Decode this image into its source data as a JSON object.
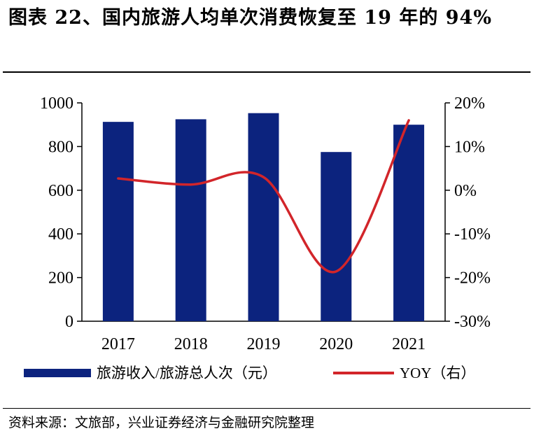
{
  "title": "图表 22、国内旅游人均单次消费恢复至 19 年的 94%",
  "source": "资料来源：文旅部，兴业证券经济与金融研究院整理",
  "colors": {
    "bar": "#0c237e",
    "line": "#d2252a",
    "axis": "#000000"
  },
  "chart_data": {
    "type": "bar+line",
    "categories": [
      "2017",
      "2018",
      "2019",
      "2020",
      "2021"
    ],
    "series": [
      {
        "name": "旅游收入/旅游总人次（元）",
        "type": "bar",
        "axis": "left",
        "values": [
          913,
          925,
          953,
          775,
          900
        ]
      },
      {
        "name": "YOY（右）",
        "type": "line",
        "axis": "right",
        "unit": "%",
        "values": [
          2.7,
          1.3,
          3.0,
          -18.6,
          16.0
        ]
      }
    ],
    "y_left": {
      "min": 0,
      "max": 1000,
      "ticks": [
        0,
        200,
        400,
        600,
        800,
        1000
      ]
    },
    "y_right": {
      "min": -30,
      "max": 20,
      "ticks": [
        "20%",
        "10%",
        "0%",
        "-10%",
        "-20%",
        "-30%"
      ]
    },
    "legend": [
      "旅游收入/旅游总人次（元）",
      "YOY（右）"
    ]
  }
}
